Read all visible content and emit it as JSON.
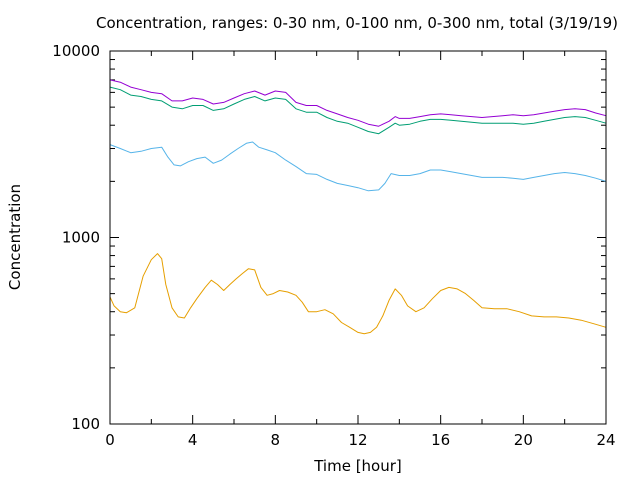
{
  "chart_data": {
    "type": "line",
    "title": "Concentration, ranges: 0-30 nm, 0-100 nm, 0-300 nm, total (3/19/19)",
    "xlabel": "Time [hour]",
    "ylabel": "Concentration",
    "xlim": [
      0,
      24
    ],
    "ylim": [
      100,
      10000
    ],
    "yscale": "log",
    "x_ticks": [
      0,
      4,
      8,
      12,
      16,
      20,
      24
    ],
    "y_ticks": [
      100,
      1000,
      10000
    ],
    "grid": false,
    "legend": "none",
    "series": [
      {
        "color": "#e69f00",
        "x": [
          0,
          0.2,
          0.5,
          0.8,
          1.2,
          1.6,
          2.0,
          2.3,
          2.5,
          2.7,
          3.0,
          3.3,
          3.6,
          3.9,
          4.2,
          4.6,
          4.9,
          5.2,
          5.5,
          5.8,
          6.1,
          6.4,
          6.7,
          7.0,
          7.3,
          7.6,
          7.9,
          8.2,
          8.6,
          9.0,
          9.3,
          9.6,
          10.0,
          10.4,
          10.8,
          11.2,
          11.6,
          12.0,
          12.3,
          12.6,
          12.9,
          13.2,
          13.5,
          13.8,
          14.1,
          14.4,
          14.8,
          15.2,
          15.6,
          16.0,
          16.4,
          16.8,
          17.2,
          17.6,
          18.0,
          18.6,
          19.2,
          19.8,
          20.4,
          21.0,
          21.6,
          22.2,
          22.8,
          23.4,
          24.0
        ],
        "values": [
          480,
          430,
          400,
          395,
          420,
          620,
          760,
          820,
          770,
          560,
          420,
          375,
          370,
          420,
          470,
          540,
          590,
          560,
          520,
          560,
          600,
          640,
          680,
          670,
          540,
          490,
          500,
          520,
          510,
          490,
          450,
          400,
          400,
          410,
          390,
          350,
          330,
          310,
          305,
          310,
          330,
          380,
          460,
          530,
          490,
          430,
          400,
          420,
          470,
          520,
          540,
          530,
          500,
          460,
          420,
          415,
          415,
          400,
          380,
          375,
          375,
          370,
          360,
          345,
          330
        ]
      },
      {
        "color": "#56b4e9",
        "x": [
          0,
          0.5,
          1.0,
          1.5,
          2.0,
          2.5,
          2.8,
          3.1,
          3.4,
          3.8,
          4.2,
          4.6,
          5.0,
          5.4,
          5.8,
          6.2,
          6.6,
          6.9,
          7.2,
          7.6,
          8.0,
          8.5,
          9.0,
          9.5,
          10.0,
          10.5,
          11.0,
          11.5,
          12.0,
          12.5,
          13.0,
          13.3,
          13.6,
          14.0,
          14.5,
          15.0,
          15.5,
          16.0,
          16.5,
          17.0,
          17.5,
          18.0,
          18.5,
          19.0,
          19.5,
          20.0,
          20.5,
          21.0,
          21.5,
          22.0,
          22.5,
          23.0,
          23.5,
          24.0
        ],
        "values": [
          3150,
          3000,
          2850,
          2900,
          3000,
          3050,
          2700,
          2450,
          2420,
          2550,
          2650,
          2700,
          2500,
          2600,
          2800,
          3000,
          3200,
          3250,
          3050,
          2950,
          2850,
          2600,
          2400,
          2200,
          2180,
          2050,
          1950,
          1900,
          1850,
          1780,
          1800,
          1950,
          2200,
          2150,
          2150,
          2200,
          2300,
          2300,
          2250,
          2200,
          2150,
          2100,
          2100,
          2100,
          2080,
          2050,
          2100,
          2150,
          2200,
          2230,
          2200,
          2150,
          2080,
          2000
        ]
      },
      {
        "color": "#009e73",
        "x": [
          0,
          0.5,
          1.0,
          1.5,
          2.0,
          2.5,
          3.0,
          3.5,
          4.0,
          4.5,
          5.0,
          5.5,
          6.0,
          6.5,
          7.0,
          7.5,
          8.0,
          8.5,
          9.0,
          9.5,
          10.0,
          10.5,
          11.0,
          11.5,
          12.0,
          12.5,
          13.0,
          13.5,
          13.8,
          14.0,
          14.5,
          15.0,
          15.5,
          16.0,
          16.5,
          17.0,
          17.5,
          18.0,
          18.5,
          19.0,
          19.5,
          20.0,
          20.5,
          21.0,
          21.5,
          22.0,
          22.5,
          23.0,
          23.5,
          24.0
        ],
        "values": [
          6400,
          6200,
          5800,
          5700,
          5500,
          5400,
          5000,
          4900,
          5100,
          5100,
          4800,
          4900,
          5200,
          5500,
          5700,
          5400,
          5600,
          5500,
          4900,
          4700,
          4700,
          4400,
          4200,
          4100,
          3900,
          3700,
          3600,
          3900,
          4100,
          4000,
          4050,
          4200,
          4300,
          4300,
          4250,
          4200,
          4150,
          4100,
          4100,
          4100,
          4100,
          4050,
          4100,
          4200,
          4300,
          4400,
          4450,
          4400,
          4250,
          4100
        ]
      },
      {
        "color": "#9400d3",
        "x": [
          0,
          0.5,
          1.0,
          1.5,
          2.0,
          2.5,
          3.0,
          3.5,
          4.0,
          4.5,
          5.0,
          5.5,
          6.0,
          6.5,
          7.0,
          7.5,
          8.0,
          8.5,
          9.0,
          9.5,
          10.0,
          10.5,
          11.0,
          11.5,
          12.0,
          12.5,
          13.0,
          13.5,
          13.8,
          14.0,
          14.5,
          15.0,
          15.5,
          16.0,
          16.5,
          17.0,
          17.5,
          18.0,
          18.5,
          19.0,
          19.5,
          20.0,
          20.5,
          21.0,
          21.5,
          22.0,
          22.5,
          23.0,
          23.5,
          24.0
        ],
        "values": [
          7000,
          6800,
          6400,
          6200,
          6000,
          5900,
          5400,
          5400,
          5600,
          5500,
          5200,
          5300,
          5600,
          5900,
          6100,
          5800,
          6100,
          6000,
          5300,
          5100,
          5100,
          4800,
          4600,
          4400,
          4250,
          4050,
          3950,
          4200,
          4450,
          4350,
          4350,
          4450,
          4550,
          4600,
          4550,
          4500,
          4450,
          4400,
          4450,
          4500,
          4550,
          4500,
          4550,
          4650,
          4750,
          4850,
          4900,
          4850,
          4650,
          4500
        ]
      }
    ]
  }
}
